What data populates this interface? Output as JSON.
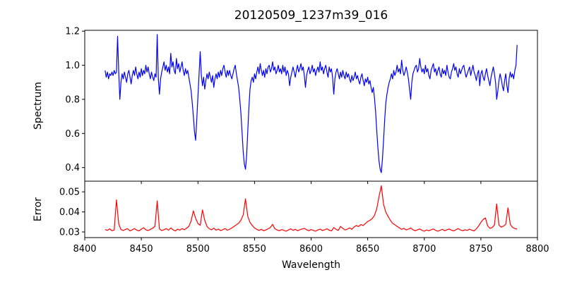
{
  "figure": {
    "title": "20120509_1237m39_016",
    "xlabel": "Wavelength",
    "background_color": "#ffffff",
    "axes_color": "#000000"
  },
  "chart_data": [
    {
      "id": "spectrum",
      "type": "line",
      "ylabel": "Spectrum",
      "line_color": "#0000ff",
      "xlim": [
        8400,
        8800
      ],
      "ylim": [
        0.32,
        1.205
      ],
      "xticks": [
        8400,
        8450,
        8500,
        8550,
        8600,
        8650,
        8700,
        8750,
        8800
      ],
      "yticks": [
        0.4,
        0.6,
        0.8,
        1.0,
        1.2
      ],
      "show_x_tick_labels": false,
      "grid": false,
      "x_start": 8418,
      "x_step": 1,
      "y": [
        0.97,
        0.93,
        0.96,
        0.92,
        0.95,
        0.94,
        0.96,
        0.94,
        0.97,
        0.95,
        0.96,
        1.17,
        0.96,
        0.8,
        0.9,
        0.95,
        0.92,
        0.96,
        0.93,
        0.9,
        0.95,
        0.97,
        0.93,
        0.89,
        0.94,
        0.97,
        0.94,
        0.99,
        0.95,
        0.92,
        0.96,
        0.93,
        0.98,
        0.94,
        0.97,
        0.95,
        1.0,
        0.96,
        0.99,
        0.95,
        0.92,
        0.96,
        0.93,
        0.91,
        0.95,
        0.93,
        1.18,
        0.92,
        0.83,
        0.92,
        0.96,
        0.99,
        1.02,
        0.97,
        1.0,
        0.96,
        0.99,
        0.95,
        1.07,
        0.99,
        1.02,
        0.97,
        0.95,
        1.04,
        0.98,
        1.01,
        0.96,
        0.99,
        1.02,
        0.97,
        0.94,
        0.98,
        0.95,
        0.97,
        0.93,
        0.89,
        0.85,
        0.78,
        0.7,
        0.61,
        0.56,
        0.68,
        0.82,
        0.95,
        1.08,
        0.94,
        0.88,
        0.93,
        0.86,
        0.91,
        0.95,
        0.92,
        0.96,
        0.93,
        0.9,
        0.94,
        0.87,
        0.92,
        0.95,
        0.92,
        0.96,
        0.93,
        0.97,
        0.94,
        0.98,
        1.0,
        0.96,
        0.93,
        0.97,
        0.94,
        0.97,
        0.94,
        0.92,
        0.95,
        0.98,
        1.0,
        0.95,
        0.91,
        0.87,
        0.8,
        0.72,
        0.61,
        0.49,
        0.42,
        0.39,
        0.47,
        0.61,
        0.75,
        0.86,
        0.91,
        0.93,
        0.9,
        0.95,
        0.92,
        0.96,
        0.99,
        0.95,
        1.01,
        0.97,
        0.94,
        0.97,
        0.93,
        0.98,
        0.95,
        0.99,
        1.0,
        0.96,
        0.98,
        1.02,
        0.97,
        0.99,
        0.95,
        0.97,
        1.0,
        0.96,
        0.98,
        0.95,
        1.0,
        0.96,
        0.99,
        0.94,
        0.97,
        0.95,
        0.88,
        0.93,
        0.96,
        0.99,
        0.96,
        0.93,
        0.97,
        1.0,
        0.96,
        0.98,
        1.01,
        0.97,
        0.99,
        0.94,
        0.87,
        0.94,
        0.97,
        0.99,
        0.95,
        0.97,
        1.0,
        0.96,
        0.98,
        0.94,
        0.97,
        0.99,
        0.96,
        1.02,
        0.97,
        0.99,
        0.95,
        0.98,
        1.0,
        0.96,
        0.93,
        0.99,
        0.96,
        0.98,
        0.93,
        0.83,
        0.92,
        0.96,
        0.98,
        0.95,
        0.92,
        0.96,
        0.93,
        0.97,
        0.94,
        0.92,
        0.96,
        0.93,
        0.95,
        0.92,
        0.9,
        0.94,
        0.91,
        0.93,
        0.96,
        0.92,
        0.94,
        0.91,
        0.89,
        0.93,
        0.95,
        0.91,
        0.88,
        0.92,
        0.9,
        0.93,
        0.89,
        0.91,
        0.87,
        0.84,
        0.87,
        0.81,
        0.73,
        0.62,
        0.52,
        0.44,
        0.39,
        0.37,
        0.45,
        0.56,
        0.68,
        0.78,
        0.83,
        0.87,
        0.9,
        0.92,
        0.95,
        0.92,
        0.97,
        0.94,
        0.96,
        1.0,
        0.96,
        0.98,
        0.95,
        1.03,
        0.97,
        0.94,
        0.96,
        0.99,
        0.96,
        0.92,
        0.86,
        0.8,
        0.9,
        0.95,
        0.97,
        0.99,
        1.0,
        0.96,
        0.98,
        1.04,
        0.99,
        0.96,
        0.98,
        0.95,
        1.0,
        0.96,
        0.98,
        0.94,
        0.92,
        0.97,
        0.99,
        1.01,
        0.96,
        0.98,
        0.94,
        0.97,
        0.99,
        0.95,
        0.93,
        0.98,
        0.95,
        0.97,
        0.94,
        1.0,
        0.96,
        0.93,
        0.92,
        0.96,
        0.98,
        1.01,
        0.97,
        0.99,
        0.95,
        0.93,
        0.98,
        0.95,
        0.97,
        0.99,
        1.0,
        0.96,
        0.93,
        0.95,
        0.97,
        0.99,
        0.94,
        0.97,
        1.0,
        0.96,
        0.94,
        0.91,
        0.95,
        0.97,
        0.88,
        0.95,
        0.97,
        0.93,
        0.91,
        0.95,
        0.98,
        0.94,
        0.91,
        0.88,
        0.93,
        0.96,
        0.99,
        0.95,
        0.9,
        0.8,
        0.85,
        0.91,
        0.95,
        0.92,
        0.88,
        0.85,
        0.91,
        0.95,
        0.88,
        0.84,
        0.92,
        0.96,
        0.93,
        0.95,
        0.92,
        0.97,
        1.0,
        1.12
      ]
    },
    {
      "id": "error",
      "type": "line",
      "ylabel": "Error",
      "line_color": "#ff0000",
      "xlim": [
        8400,
        8800
      ],
      "ylim": [
        0.0272,
        0.0553
      ],
      "xticks": [
        8400,
        8450,
        8500,
        8550,
        8600,
        8650,
        8700,
        8750,
        8800
      ],
      "yticks": [
        0.03,
        0.04,
        0.05
      ],
      "show_x_tick_labels": true,
      "grid": false,
      "x_start": 8418,
      "x_step": 2,
      "y": [
        0.0312,
        0.0308,
        0.0316,
        0.0306,
        0.031,
        0.046,
        0.034,
        0.0312,
        0.0307,
        0.0313,
        0.0316,
        0.0305,
        0.0311,
        0.0317,
        0.0309,
        0.0305,
        0.0314,
        0.0321,
        0.0311,
        0.0307,
        0.0313,
        0.0319,
        0.0328,
        0.0455,
        0.0315,
        0.0307,
        0.0311,
        0.0317,
        0.0309,
        0.032,
        0.0311,
        0.0305,
        0.0314,
        0.0309,
        0.0317,
        0.0311,
        0.0319,
        0.0328,
        0.0355,
        0.0405,
        0.0368,
        0.0342,
        0.0333,
        0.041,
        0.0358,
        0.0328,
        0.0316,
        0.0311,
        0.0319,
        0.0309,
        0.0314,
        0.0307,
        0.0311,
        0.0317,
        0.0309,
        0.0313,
        0.032,
        0.0328,
        0.0336,
        0.0344,
        0.0358,
        0.0385,
        0.0465,
        0.0378,
        0.0348,
        0.0332,
        0.032,
        0.0313,
        0.0308,
        0.0313,
        0.0306,
        0.031,
        0.0316,
        0.0322,
        0.0338,
        0.0316,
        0.031,
        0.0306,
        0.0312,
        0.0308,
        0.0304,
        0.031,
        0.0316,
        0.0308,
        0.0313,
        0.0306,
        0.0311,
        0.0315,
        0.0318,
        0.0311,
        0.0306,
        0.0312,
        0.0308,
        0.0304,
        0.031,
        0.0314,
        0.0307,
        0.0311,
        0.0316,
        0.0309,
        0.0305,
        0.0322,
        0.0313,
        0.0308,
        0.0328,
        0.0318,
        0.031,
        0.0314,
        0.032,
        0.0313,
        0.0325,
        0.0332,
        0.0327,
        0.0337,
        0.0332,
        0.0342,
        0.0352,
        0.0358,
        0.0367,
        0.0382,
        0.0415,
        0.0475,
        0.053,
        0.0438,
        0.0398,
        0.0378,
        0.0358,
        0.0343,
        0.0336,
        0.0328,
        0.032,
        0.0313,
        0.0318,
        0.031,
        0.0314,
        0.032,
        0.0311,
        0.0306,
        0.0311,
        0.0315,
        0.0308,
        0.0304,
        0.031,
        0.0306,
        0.0311,
        0.0315,
        0.0308,
        0.0304,
        0.0309,
        0.0313,
        0.0306,
        0.0311,
        0.0315,
        0.0309,
        0.0305,
        0.0311,
        0.0317,
        0.031,
        0.0306,
        0.0311,
        0.0308,
        0.0314,
        0.0309,
        0.0305,
        0.0316,
        0.033,
        0.0348,
        0.0362,
        0.037,
        0.033,
        0.0318,
        0.0322,
        0.0335,
        0.044,
        0.0334,
        0.0324,
        0.0329,
        0.0338,
        0.042,
        0.0338,
        0.0323,
        0.0317,
        0.0314
      ]
    }
  ]
}
